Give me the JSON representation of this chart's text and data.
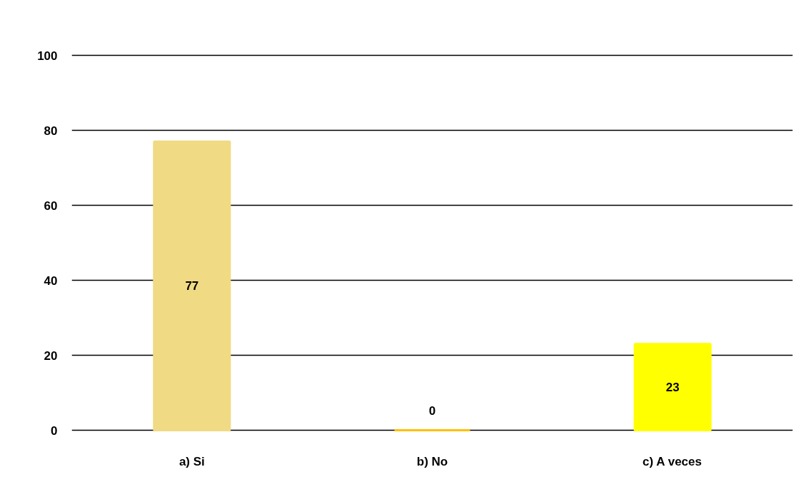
{
  "chart_data": {
    "type": "bar",
    "categories": [
      "a) Si",
      "b) No",
      "c) A veces"
    ],
    "values": [
      77,
      0,
      23
    ],
    "colors": [
      "#f0da84",
      "#ffc000",
      "#ffff00"
    ],
    "ylim": [
      0,
      100
    ],
    "yticks": [
      0,
      20,
      40,
      60,
      80,
      100
    ],
    "grid": "y",
    "data_labels": true
  }
}
